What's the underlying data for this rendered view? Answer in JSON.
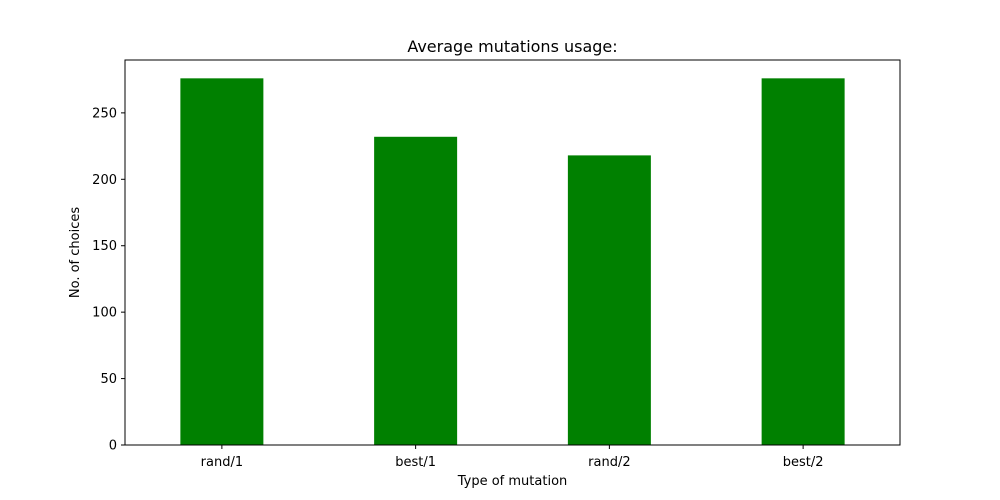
{
  "chart_data": {
    "type": "bar",
    "title": "Average mutations usage:",
    "xlabel": "Type of mutation",
    "ylabel": "No. of choices",
    "categories": [
      "rand/1",
      "best/1",
      "rand/2",
      "best/2"
    ],
    "values": [
      276,
      232,
      218,
      276
    ],
    "ylim": [
      0,
      289.8
    ],
    "yticks": [
      0,
      50,
      100,
      150,
      200,
      250
    ],
    "grid": false,
    "bar_color": "#008000"
  }
}
